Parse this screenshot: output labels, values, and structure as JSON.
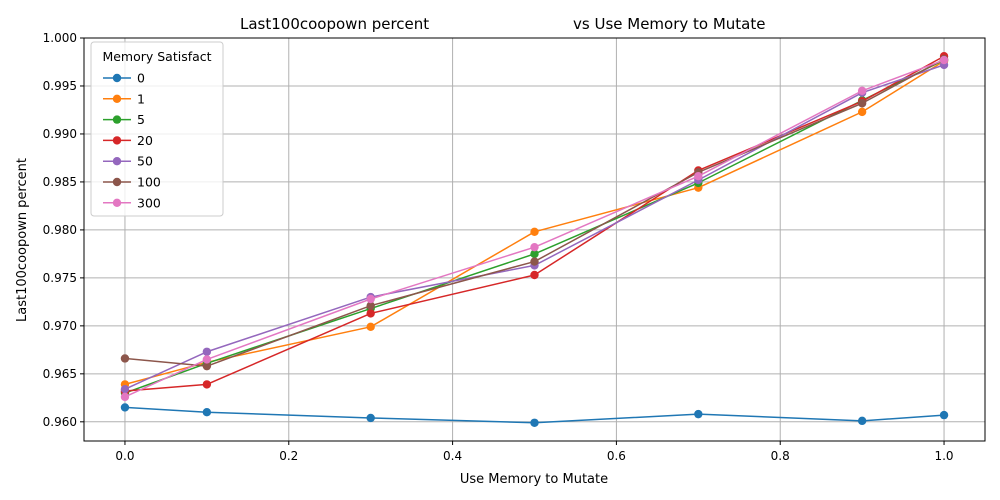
{
  "chart_data": {
    "type": "line",
    "title_left": "Last100coopown percent",
    "title_right": "vs Use Memory to Mutate",
    "xlabel": "Use Memory to Mutate",
    "ylabel": "Last100coopown percent",
    "xlim": [
      -0.05,
      1.05
    ],
    "ylim": [
      0.958,
      1.0
    ],
    "x_ticks": [
      "0.0",
      "0.2",
      "0.4",
      "0.6",
      "0.8",
      "1.0"
    ],
    "y_ticks": [
      "0.960",
      "0.965",
      "0.970",
      "0.975",
      "0.980",
      "0.985",
      "0.990",
      "0.995",
      "1.000"
    ],
    "grid": true,
    "legend_title": "Memory Satisfact",
    "legend_position": "top-left",
    "x": [
      0.0,
      0.1,
      0.3,
      0.5,
      0.7,
      0.9,
      1.0
    ],
    "series": [
      {
        "name": "0",
        "color": "#1f77b4",
        "values": [
          0.9615,
          0.961,
          0.9604,
          0.9599,
          0.9608,
          0.9601,
          0.9607
        ]
      },
      {
        "name": "1",
        "color": "#ff7f0e",
        "values": [
          0.9639,
          0.9662,
          0.9699,
          0.9798,
          0.9844,
          0.9923,
          0.9976
        ]
      },
      {
        "name": "5",
        "color": "#2ca02c",
        "values": [
          0.963,
          0.9661,
          0.9718,
          0.9775,
          0.9849,
          0.9935,
          0.9977
        ]
      },
      {
        "name": "20",
        "color": "#d62728",
        "values": [
          0.9632,
          0.9639,
          0.9713,
          0.9753,
          0.9862,
          0.9934,
          0.9981
        ]
      },
      {
        "name": "50",
        "color": "#9467bd",
        "values": [
          0.9634,
          0.9673,
          0.973,
          0.9763,
          0.9852,
          0.9943,
          0.9972
        ]
      },
      {
        "name": "100",
        "color": "#8c564b",
        "values": [
          0.9666,
          0.9658,
          0.9721,
          0.9767,
          0.986,
          0.9932,
          0.9978
        ]
      },
      {
        "name": "300",
        "color": "#e377c2",
        "values": [
          0.9626,
          0.9665,
          0.9728,
          0.9782,
          0.9856,
          0.9945,
          0.9977
        ]
      }
    ]
  }
}
